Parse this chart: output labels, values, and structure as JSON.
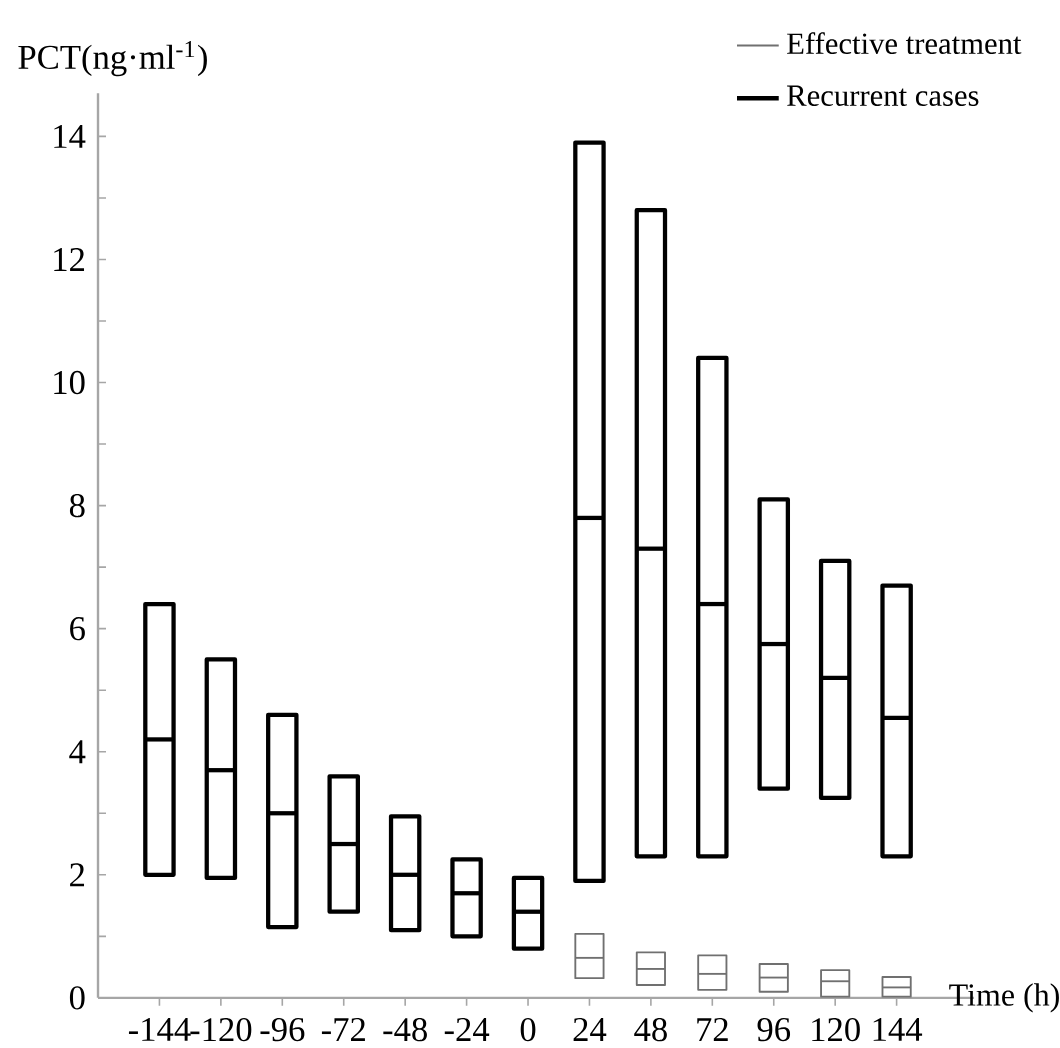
{
  "chart_data": {
    "type": "box",
    "ylabel": "PCT(ng·ml$^{-1}$)",
    "xlabel": "Time (h)",
    "categories": [
      "-144",
      "-120",
      "-96",
      "-72",
      "-48",
      "-24",
      "0",
      "24",
      "48",
      "72",
      "96",
      "120",
      "144"
    ],
    "ylim": [
      0,
      14.7
    ],
    "yticks": [
      0,
      2,
      4,
      6,
      8,
      10,
      12,
      14
    ],
    "legend": "top right",
    "grid": false,
    "series": [
      {
        "name": "Effective treatment",
        "color": "#707070",
        "boxes": [
          null,
          null,
          null,
          null,
          null,
          null,
          null,
          {
            "low": 0.32,
            "q1": 0.32,
            "median": 0.65,
            "q3": 1.04,
            "high": 1.04
          },
          {
            "low": 0.21,
            "q1": 0.21,
            "median": 0.47,
            "q3": 0.74,
            "high": 0.74
          },
          {
            "low": 0.13,
            "q1": 0.13,
            "median": 0.39,
            "q3": 0.69,
            "high": 0.69
          },
          {
            "low": 0.1,
            "q1": 0.1,
            "median": 0.33,
            "q3": 0.55,
            "high": 0.55
          },
          {
            "low": 0.02,
            "q1": 0.02,
            "median": 0.27,
            "q3": 0.45,
            "high": 0.45
          },
          {
            "low": 0.02,
            "q1": 0.02,
            "median": 0.17,
            "q3": 0.34,
            "high": 0.34
          }
        ]
      },
      {
        "name": "Recurrent cases",
        "color": "#000000",
        "boxes": [
          {
            "low": 2.0,
            "q1": 2.0,
            "median": 4.2,
            "q3": 6.4,
            "high": 6.4
          },
          {
            "low": 1.95,
            "q1": 1.95,
            "median": 3.7,
            "q3": 5.5,
            "high": 5.5
          },
          {
            "low": 1.15,
            "q1": 1.15,
            "median": 3.0,
            "q3": 4.6,
            "high": 4.6
          },
          {
            "low": 1.4,
            "q1": 1.4,
            "median": 2.5,
            "q3": 3.6,
            "high": 3.6
          },
          {
            "low": 1.1,
            "q1": 1.1,
            "median": 2.0,
            "q3": 2.95,
            "high": 2.95
          },
          {
            "low": 1.0,
            "q1": 1.0,
            "median": 1.7,
            "q3": 2.25,
            "high": 2.25
          },
          {
            "low": 0.8,
            "q1": 0.8,
            "median": 1.4,
            "q3": 1.95,
            "high": 1.95
          },
          {
            "low": 1.9,
            "q1": 1.9,
            "median": 7.8,
            "q3": 13.9,
            "high": 13.9
          },
          {
            "low": 2.3,
            "q1": 2.3,
            "median": 7.3,
            "q3": 12.8,
            "high": 12.8
          },
          {
            "low": 2.3,
            "q1": 2.3,
            "median": 6.4,
            "q3": 10.4,
            "high": 10.4
          },
          {
            "low": 3.4,
            "q1": 3.4,
            "median": 5.75,
            "q3": 8.1,
            "high": 8.1
          },
          {
            "low": 3.25,
            "q1": 3.25,
            "median": 5.2,
            "q3": 7.1,
            "high": 7.1
          },
          {
            "low": 2.3,
            "q1": 2.3,
            "median": 4.55,
            "q3": 6.7,
            "high": 6.7
          }
        ]
      }
    ]
  }
}
